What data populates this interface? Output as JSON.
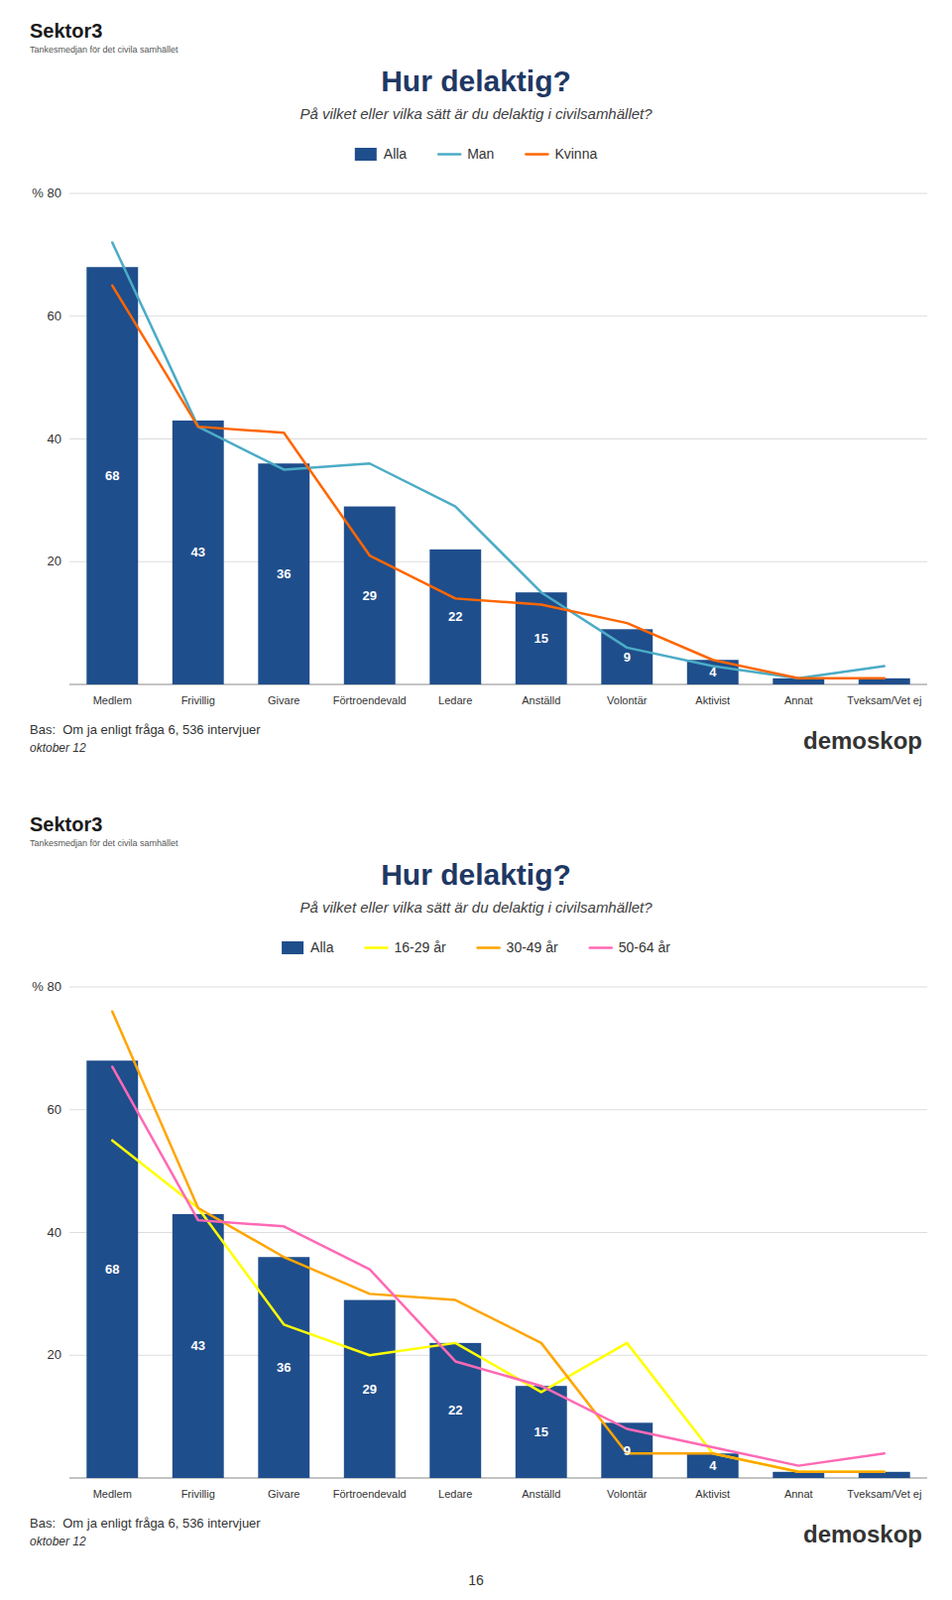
{
  "chart_data": [
    {
      "type": "bar",
      "title": "Hur delaktig?",
      "subtitle": "På vilket eller vilka sätt är du delaktig i civilsamhället?",
      "annotations": [
        "Sektor3",
        "Tankesmedjan för det civila samhället",
        "Bas:  Om ja enligt fråga 6, 536 intervjuer",
        "oktober 12",
        "demoskop"
      ],
      "categories": [
        "Medlem",
        "Frivillig",
        "Givare",
        "Förtroendevald",
        "Ledare",
        "Anställd",
        "Volontär",
        "Aktivist",
        "Annat",
        "Tveksam/Vet ej"
      ],
      "series": [
        {
          "name": "Alla",
          "type": "bar",
          "color": "#1F4E8C",
          "values": [
            68,
            43,
            36,
            29,
            22,
            15,
            9,
            4,
            1,
            1
          ],
          "value_labels": [
            "68",
            "43",
            "36",
            "29",
            "22",
            "15",
            "9",
            "4",
            null,
            null
          ]
        },
        {
          "name": "Man",
          "type": "line",
          "color": "#4BACC6",
          "line_style": "solid",
          "values": [
            72,
            42,
            35,
            36,
            29,
            15,
            6,
            3,
            1,
            3
          ]
        },
        {
          "name": "Kvinna",
          "type": "line",
          "color": "#FF6600",
          "line_style": "solid",
          "values": [
            65,
            42,
            41,
            21,
            14,
            13,
            10,
            4,
            1,
            1
          ]
        }
      ],
      "data_labels": true,
      "ylim": [
        0,
        80
      ],
      "yticks": [
        {
          "value": 0,
          "label": null
        },
        20,
        40,
        60,
        {
          "value": 80,
          "label": "% 80"
        }
      ],
      "grid": true,
      "legend": "top"
    },
    {
      "type": "bar",
      "title": "Hur delaktig?",
      "subtitle": "På vilket eller vilka sätt är du delaktig i civilsamhället?",
      "annotations": [
        "Sektor3",
        "Tankesmedjan för det civila samhället",
        "Bas:  Om ja enligt fråga 6, 536 intervjuer",
        "oktober 12",
        "demoskop",
        "16"
      ],
      "categories": [
        "Medlem",
        "Frivillig",
        "Givare",
        "Förtroendevald",
        "Ledare",
        "Anställd",
        "Volontär",
        "Aktivist",
        "Annat",
        "Tveksam/Vet ej"
      ],
      "series": [
        {
          "name": "Alla",
          "type": "bar",
          "color": "#1F4E8C",
          "values": [
            68,
            43,
            36,
            29,
            22,
            15,
            9,
            4,
            1,
            1
          ],
          "value_labels": [
            "68",
            "43",
            "36",
            "29",
            "22",
            "15",
            "9",
            "4",
            null,
            null
          ]
        },
        {
          "name": "16-29 år",
          "type": "line",
          "color": "#FFFF00",
          "line_style": "solid",
          "values": [
            55,
            44,
            25,
            20,
            22,
            14,
            22,
            4,
            1,
            1
          ]
        },
        {
          "name": "30-49 år",
          "type": "line",
          "color": "#FFA500",
          "line_style": "solid",
          "values": [
            76,
            44,
            36,
            30,
            29,
            22,
            4,
            4,
            1,
            1
          ]
        },
        {
          "name": "50-64 år",
          "type": "line",
          "color": "#FF69B4",
          "line_style": "solid",
          "values": [
            67,
            42,
            41,
            34,
            19,
            15,
            8,
            5,
            2,
            4
          ]
        }
      ],
      "data_labels": true,
      "ylim": [
        0,
        80
      ],
      "yticks": [
        {
          "value": 0,
          "label": null
        },
        20,
        40,
        60,
        {
          "value": 80,
          "label": "% 80"
        }
      ],
      "grid": true,
      "legend": "top"
    }
  ]
}
